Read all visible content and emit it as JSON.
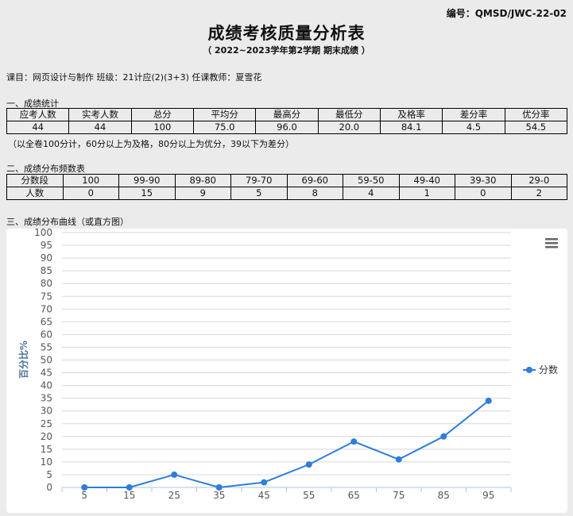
{
  "header": {
    "code": "编号：QMSD/JWC-22-02",
    "title": "成绩考核质量分析表",
    "subtitle": "（ 2022~2023学年第2学期  期末成绩 ）",
    "info": "课目：网页设计与制作 班级：21计应(2)(3+3) 任课教师：夏雪花"
  },
  "stats": {
    "section_title": "一、成绩统计",
    "headers": [
      "应考人数",
      "实考人数",
      "总分",
      "平均分",
      "最高分",
      "最低分",
      "及格率",
      "差分率",
      "优分率"
    ],
    "values": [
      "44",
      "44",
      "100",
      "75.0",
      "96.0",
      "20.0",
      "84.1",
      "4.5",
      "54.5"
    ],
    "note": "（以全卷100分计，60分以上为及格，80分以上为优分，39以下为差分）"
  },
  "distribution": {
    "section_title": "二、成绩分布频数表",
    "headers": [
      "分数段",
      "100",
      "99-90",
      "89-80",
      "79-70",
      "69-60",
      "59-50",
      "49-40",
      "39-30",
      "29-0"
    ],
    "values": [
      "人数",
      "0",
      "15",
      "9",
      "5",
      "8",
      "4",
      "1",
      "0",
      "2"
    ]
  },
  "chart_section_title": "三、成绩分布曲线（或直方图）",
  "chart_data": {
    "type": "line",
    "title": "",
    "xlabel": "",
    "ylabel": "百分比%",
    "x": [
      5,
      15,
      25,
      35,
      45,
      55,
      65,
      75,
      85,
      95
    ],
    "series": [
      {
        "name": "分数",
        "values": [
          0,
          0,
          5,
          0,
          2,
          9,
          18,
          11,
          20,
          34
        ]
      }
    ],
    "ylim": [
      0,
      100
    ],
    "yticks": [
      0,
      5,
      10,
      15,
      20,
      25,
      30,
      35,
      40,
      45,
      50,
      55,
      60,
      65,
      70,
      75,
      80,
      85,
      90,
      95,
      100
    ],
    "grid": true,
    "legend": "right",
    "color": "#2f7ed8"
  }
}
